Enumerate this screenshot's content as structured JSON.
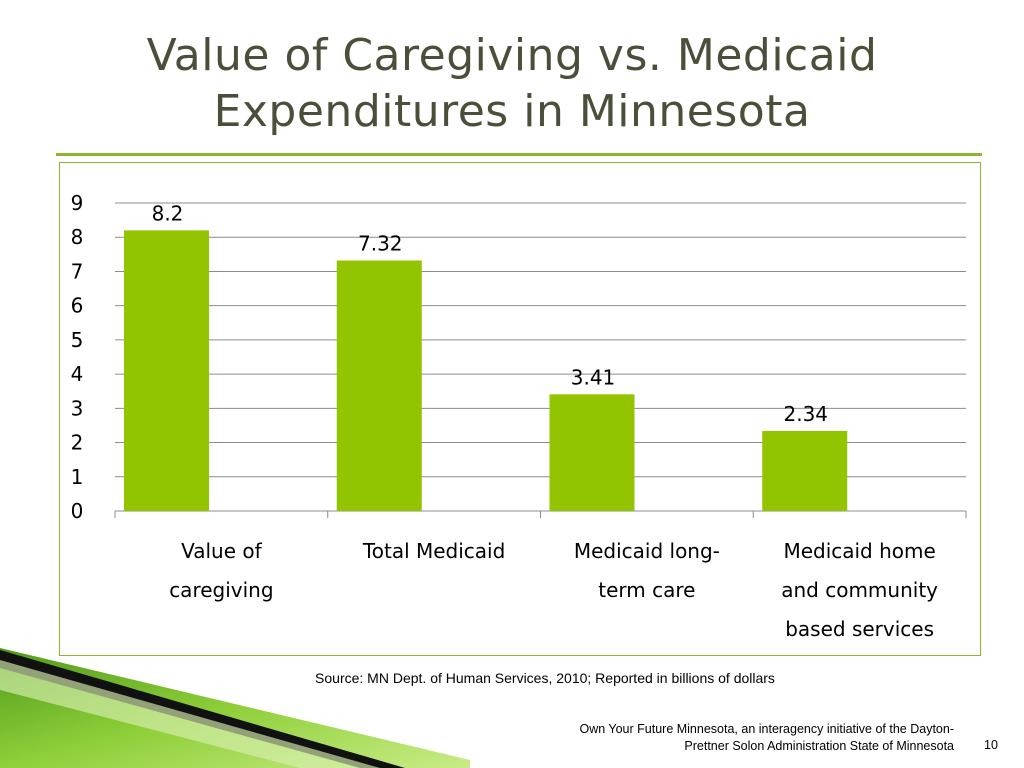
{
  "slide": {
    "title_line1": "Value of Caregiving vs. Medicaid",
    "title_line2": "Expenditures in Minnesota",
    "source": "Source: MN Dept. of Human Services, 2010; Reported in billions of dollars",
    "footer_line1": "Own Your Future Minnesota, an interagency initiative of the Dayton-",
    "footer_line2": "Prettner Solon Administration State of Minnesota",
    "page_number": "10"
  },
  "colors": {
    "bar": "#92c400",
    "accent": "#8db531",
    "gridline": "#8c8c8c",
    "text": "#000000"
  },
  "chart_data": {
    "type": "bar",
    "categories": [
      [
        "Value of",
        "caregiving"
      ],
      [
        "Total Medicaid"
      ],
      [
        "Medicaid long-",
        "term care"
      ],
      [
        "Medicaid home",
        "and community",
        "based services"
      ]
    ],
    "values": [
      8.2,
      7.32,
      3.41,
      2.34
    ],
    "data_labels": [
      "8.2",
      "7.32",
      "3.41",
      "2.34"
    ],
    "y_ticks": [
      "0",
      "1",
      "2",
      "3",
      "4",
      "5",
      "6",
      "7",
      "8",
      "9"
    ],
    "ylim": [
      0,
      9
    ],
    "grid": true,
    "legend": "none"
  }
}
